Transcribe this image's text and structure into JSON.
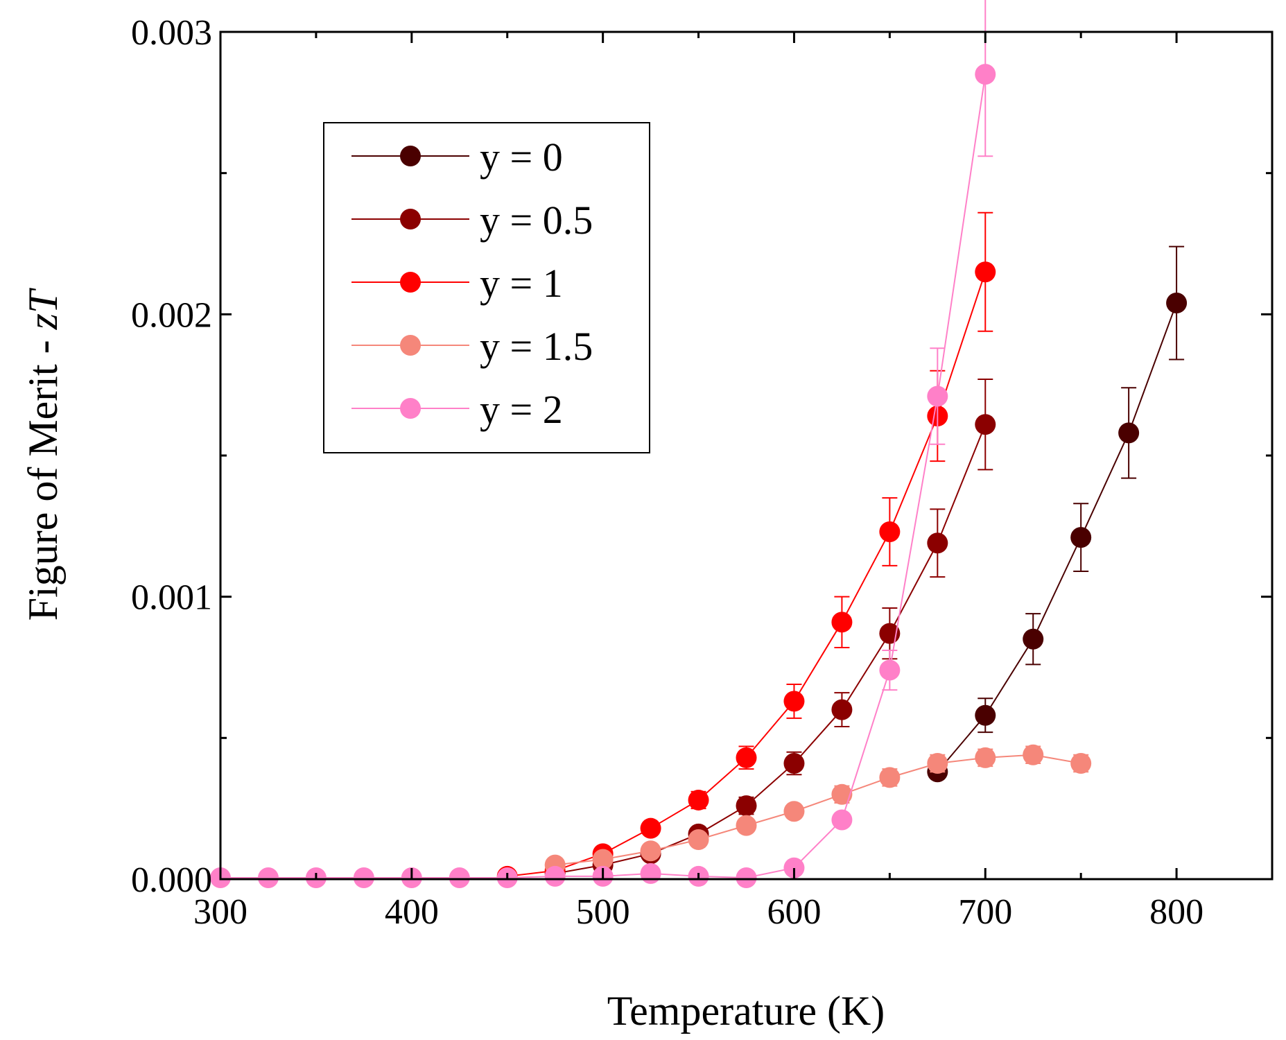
{
  "chart_data": {
    "type": "scatter",
    "title": "",
    "xlabel": "Temperature (K)",
    "ylabel_main": "Figure of Merit - ",
    "ylabel_italic": "zT",
    "xlim": [
      300,
      850
    ],
    "ylim": [
      0,
      0.003
    ],
    "xticks": [
      {
        "value": 300,
        "label": "300"
      },
      {
        "value": 400,
        "label": "400"
      },
      {
        "value": 500,
        "label": "500"
      },
      {
        "value": 600,
        "label": "600"
      },
      {
        "value": 700,
        "label": "700"
      },
      {
        "value": 800,
        "label": "800"
      }
    ],
    "yticks": [
      {
        "value": 0,
        "label": "0.000"
      },
      {
        "value": 0.001,
        "label": "0.001"
      },
      {
        "value": 0.002,
        "label": "0.002"
      },
      {
        "value": 0.003,
        "label": "0.003"
      }
    ],
    "legend_position": "top-left",
    "series": [
      {
        "name": "y = 0",
        "color": "#4a0000",
        "points": [
          {
            "x": 675,
            "y": 0.00038,
            "err": 2e-05
          },
          {
            "x": 700,
            "y": 0.00058,
            "err": 6e-05
          },
          {
            "x": 725,
            "y": 0.00085,
            "err": 9e-05
          },
          {
            "x": 750,
            "y": 0.00121,
            "err": 0.00012
          },
          {
            "x": 775,
            "y": 0.00158,
            "err": 0.00016
          },
          {
            "x": 800,
            "y": 0.00204,
            "err": 0.0002
          }
        ]
      },
      {
        "name": "y = 0.5",
        "color": "#8b0000",
        "points": [
          {
            "x": 475,
            "y": 2e-05,
            "err": 5e-06
          },
          {
            "x": 500,
            "y": 5e-05,
            "err": 8e-06
          },
          {
            "x": 525,
            "y": 9e-05,
            "err": 1e-05
          },
          {
            "x": 550,
            "y": 0.00016,
            "err": 2e-05
          },
          {
            "x": 575,
            "y": 0.00026,
            "err": 3e-05
          },
          {
            "x": 600,
            "y": 0.00041,
            "err": 4e-05
          },
          {
            "x": 625,
            "y": 0.0006,
            "err": 6e-05
          },
          {
            "x": 650,
            "y": 0.00087,
            "err": 9e-05
          },
          {
            "x": 675,
            "y": 0.00119,
            "err": 0.00012
          },
          {
            "x": 700,
            "y": 0.00161,
            "err": 0.00016
          }
        ]
      },
      {
        "name": "y = 1",
        "color": "#ff0000",
        "points": [
          {
            "x": 450,
            "y": 1e-05,
            "err": 3e-06
          },
          {
            "x": 475,
            "y": 3e-05,
            "err": 5e-06
          },
          {
            "x": 500,
            "y": 9e-05,
            "err": 1e-05
          },
          {
            "x": 525,
            "y": 0.00018,
            "err": 2e-05
          },
          {
            "x": 550,
            "y": 0.00028,
            "err": 3e-05
          },
          {
            "x": 575,
            "y": 0.00043,
            "err": 4e-05
          },
          {
            "x": 600,
            "y": 0.00063,
            "err": 6e-05
          },
          {
            "x": 625,
            "y": 0.00091,
            "err": 9e-05
          },
          {
            "x": 650,
            "y": 0.00123,
            "err": 0.00012
          },
          {
            "x": 675,
            "y": 0.00164,
            "err": 0.00016
          },
          {
            "x": 700,
            "y": 0.00215,
            "err": 0.00021
          }
        ]
      },
      {
        "name": "y = 1.5",
        "color": "#f5877a",
        "points": [
          {
            "x": 475,
            "y": 5e-05,
            "err": 5e-06
          },
          {
            "x": 500,
            "y": 7e-05,
            "err": 7e-06
          },
          {
            "x": 525,
            "y": 0.0001,
            "err": 1e-05
          },
          {
            "x": 550,
            "y": 0.00014,
            "err": 1.4e-05
          },
          {
            "x": 575,
            "y": 0.00019,
            "err": 2e-05
          },
          {
            "x": 600,
            "y": 0.00024,
            "err": 2e-05
          },
          {
            "x": 625,
            "y": 0.0003,
            "err": 3e-05
          },
          {
            "x": 650,
            "y": 0.00036,
            "err": 3e-05
          },
          {
            "x": 675,
            "y": 0.00041,
            "err": 3e-05
          },
          {
            "x": 700,
            "y": 0.00043,
            "err": 3e-05
          },
          {
            "x": 725,
            "y": 0.00044,
            "err": 3e-05
          },
          {
            "x": 750,
            "y": 0.00041,
            "err": 3e-05
          }
        ]
      },
      {
        "name": "y = 2",
        "color": "#ff80c8",
        "points": [
          {
            "x": 300,
            "y": 5e-06,
            "err": 0.0
          },
          {
            "x": 325,
            "y": 5e-06,
            "err": 0.0
          },
          {
            "x": 350,
            "y": 5e-06,
            "err": 0.0
          },
          {
            "x": 375,
            "y": 5e-06,
            "err": 0.0
          },
          {
            "x": 400,
            "y": 5e-06,
            "err": 0.0
          },
          {
            "x": 425,
            "y": 5e-06,
            "err": 0.0
          },
          {
            "x": 450,
            "y": 5e-06,
            "err": 0.0
          },
          {
            "x": 475,
            "y": 1e-05,
            "err": 0.0
          },
          {
            "x": 500,
            "y": 1e-05,
            "err": 0.0
          },
          {
            "x": 525,
            "y": 2e-05,
            "err": 0.0
          },
          {
            "x": 550,
            "y": 1e-05,
            "err": 0.0
          },
          {
            "x": 575,
            "y": 5e-06,
            "err": 0.0
          },
          {
            "x": 600,
            "y": 4e-05,
            "err": 5e-06
          },
          {
            "x": 625,
            "y": 0.00021,
            "err": 2e-05
          },
          {
            "x": 650,
            "y": 0.00074,
            "err": 7e-05
          },
          {
            "x": 675,
            "y": 0.00171,
            "err": 0.00017
          },
          {
            "x": 700,
            "y": 0.00285,
            "err": 0.00029
          }
        ]
      }
    ]
  }
}
